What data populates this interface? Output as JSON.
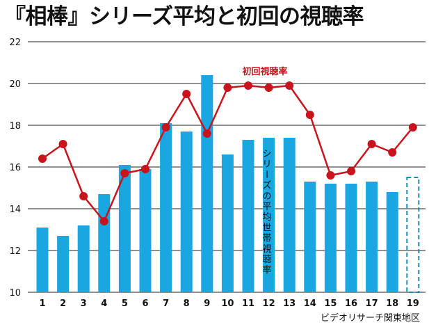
{
  "title": "『相棒』シリーズ平均と初回の視聴率",
  "chart_data": {
    "type": "bar",
    "categories": [
      "1",
      "2",
      "3",
      "4",
      "5",
      "6",
      "7",
      "8",
      "9",
      "10",
      "11",
      "12",
      "13",
      "14",
      "15",
      "16",
      "17",
      "18",
      "19"
    ],
    "series": [
      {
        "name": "シリーズの平均世帯視聴率",
        "type": "bar",
        "values": [
          13.1,
          12.7,
          13.2,
          14.7,
          16.1,
          15.9,
          18.1,
          17.7,
          20.4,
          16.6,
          17.3,
          17.4,
          17.4,
          15.3,
          15.2,
          15.2,
          15.3,
          14.8,
          null
        ]
      },
      {
        "name": "初回視聴率",
        "type": "line",
        "values": [
          16.4,
          17.1,
          14.6,
          13.4,
          15.7,
          15.9,
          17.9,
          19.5,
          17.6,
          19.8,
          19.9,
          19.8,
          19.9,
          18.5,
          15.6,
          15.8,
          17.1,
          16.7,
          17.9
        ]
      }
    ],
    "ylim": [
      10,
      22
    ],
    "yticks": [
      "10",
      "12",
      "14",
      "16",
      "18",
      "20",
      "22"
    ],
    "grid": true,
    "pending_category": "19",
    "source": "ビデオリサーチ関東地区",
    "colors": {
      "bar": "#1aa6e0",
      "line": "#c8141c",
      "grid": "#222222",
      "pending_outline": "#1f8cae"
    }
  }
}
